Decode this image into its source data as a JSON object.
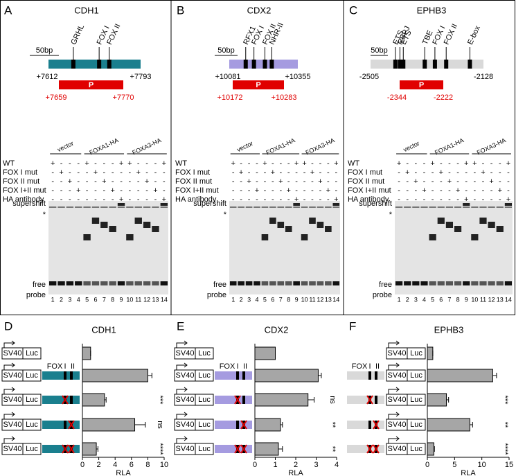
{
  "panels": [
    {
      "letter": "A",
      "gene": "CDH1",
      "scale_bar": "50bp",
      "sites": [
        "GRHL",
        "FOX I",
        "FOX II"
      ],
      "start": "+7612",
      "end": "+7793",
      "probe": "P",
      "probe_start": "+7659",
      "probe_end": "+7770",
      "color": "#1a7f8e",
      "groups": [
        "vector",
        "FOXA1-HA",
        "FOXA3-HA"
      ],
      "rows": [
        "WT",
        "FOX I mut",
        "FOX II mut",
        "FOX I+II mut",
        "HA antibody"
      ],
      "matrix": [
        [
          "+",
          "-",
          "-",
          "-",
          "+",
          "-",
          "-",
          "-",
          "+",
          "+",
          "-",
          "-",
          "-",
          "+"
        ],
        [
          "-",
          "+",
          "-",
          "-",
          "-",
          "+",
          "-",
          "-",
          "-",
          "-",
          "+",
          "-",
          "-",
          "-"
        ],
        [
          "-",
          "-",
          "+",
          "-",
          "-",
          "-",
          "+",
          "-",
          "-",
          "-",
          "-",
          "+",
          "-",
          "-"
        ],
        [
          "-",
          "-",
          "-",
          "+",
          "-",
          "-",
          "-",
          "+",
          "-",
          "-",
          "-",
          "-",
          "+",
          "-"
        ],
        [
          "-",
          "-",
          "-",
          "-",
          "-",
          "-",
          "-",
          "-",
          "+",
          "-",
          "-",
          "-",
          "-",
          "+"
        ]
      ],
      "band_labels": [
        "supershift",
        "*",
        "free",
        "probe"
      ],
      "lanes": [
        1,
        2,
        3,
        4,
        5,
        6,
        7,
        8,
        9,
        10,
        11,
        12,
        13,
        14
      ]
    },
    {
      "letter": "B",
      "gene": "CDX2",
      "scale_bar": "50bp",
      "sites": [
        "RFX1",
        "FOX I",
        "FOX II",
        "NHR-II"
      ],
      "start": "+10081",
      "end": "+10355",
      "probe": "P",
      "probe_start": "+10172",
      "probe_end": "+10283",
      "color": "#a59be0",
      "groups": [
        "vector",
        "FOXA1-HA",
        "FOXA3-HA"
      ],
      "rows": [
        "WT",
        "FOX I mut",
        "FOX II mut",
        "FOX I+II mut",
        "HA antibody"
      ],
      "matrix": [
        [
          "+",
          "-",
          "-",
          "-",
          "+",
          "-",
          "-",
          "-",
          "+",
          "+",
          "-",
          "-",
          "-",
          "+"
        ],
        [
          "-",
          "+",
          "-",
          "-",
          "-",
          "+",
          "-",
          "-",
          "-",
          "-",
          "+",
          "-",
          "-",
          "-"
        ],
        [
          "-",
          "-",
          "+",
          "-",
          "-",
          "-",
          "+",
          "-",
          "-",
          "-",
          "-",
          "+",
          "-",
          "-"
        ],
        [
          "-",
          "-",
          "-",
          "+",
          "-",
          "-",
          "-",
          "+",
          "-",
          "-",
          "-",
          "-",
          "+",
          "-"
        ],
        [
          "-",
          "-",
          "-",
          "-",
          "-",
          "-",
          "-",
          "-",
          "+",
          "-",
          "-",
          "-",
          "-",
          "+"
        ]
      ],
      "band_labels": [
        "supershift",
        "*",
        "free",
        "probe"
      ],
      "lanes": [
        1,
        2,
        3,
        4,
        5,
        6,
        7,
        8,
        9,
        10,
        11,
        12,
        13,
        14
      ]
    },
    {
      "letter": "C",
      "gene": "EPHB3",
      "scale_bar": "50bp",
      "sites": [
        "ETS",
        "RBPJ",
        "ETS",
        "TBE",
        "FOX I",
        "FOX II",
        "E-box"
      ],
      "start": "-2505",
      "end": "-2128",
      "probe": "P",
      "probe_start": "-2344",
      "probe_end": "-2222",
      "color": "#d9d9d9",
      "groups": [
        "vector",
        "FOXA1-HA",
        "FOXA3-HA"
      ],
      "rows": [
        "WT",
        "FOX I mut",
        "FOX II mut",
        "FOX I+II mut",
        "HA antibody"
      ],
      "matrix": [
        [
          "+",
          "-",
          "-",
          "-",
          "+",
          "-",
          "-",
          "-",
          "+",
          "+",
          "-",
          "-",
          "-",
          "+"
        ],
        [
          "-",
          "+",
          "-",
          "-",
          "-",
          "+",
          "-",
          "-",
          "-",
          "-",
          "+",
          "-",
          "-",
          "-"
        ],
        [
          "-",
          "-",
          "+",
          "-",
          "-",
          "-",
          "+",
          "-",
          "-",
          "-",
          "-",
          "+",
          "-",
          "-"
        ],
        [
          "-",
          "-",
          "-",
          "+",
          "-",
          "-",
          "-",
          "+",
          "-",
          "-",
          "-",
          "-",
          "+",
          "-"
        ],
        [
          "-",
          "-",
          "-",
          "-",
          "-",
          "-",
          "-",
          "-",
          "+",
          "-",
          "-",
          "-",
          "-",
          "+"
        ]
      ],
      "band_labels": [
        "supershift",
        "*",
        "free",
        "probe"
      ],
      "lanes": [
        1,
        2,
        3,
        4,
        5,
        6,
        7,
        8,
        9,
        10,
        11,
        12,
        13,
        14
      ]
    }
  ],
  "chart_data": [
    {
      "type": "bar",
      "letter": "D",
      "title": "CDH1",
      "xlabel": "RLA",
      "promoter_label": "SV40",
      "reporter_label": "Luc",
      "site_labels": [
        "FOX",
        "I",
        "II"
      ],
      "element_color": "#1a7f8e",
      "color": "#a6a6a6",
      "values": [
        1,
        8,
        2.7,
        6.4,
        1.7
      ],
      "errors": [
        0,
        0.5,
        0.2,
        1.3,
        0.2
      ],
      "significance": [
        null,
        null,
        "***",
        "ns",
        "****"
      ],
      "xlim": [
        0,
        10
      ],
      "xticks": [
        0,
        2,
        4,
        6,
        8,
        10
      ]
    },
    {
      "type": "bar",
      "letter": "E",
      "title": "CDX2",
      "xlabel": "RLA",
      "promoter_label": "SV40",
      "reporter_label": "Luc",
      "site_labels": [
        "FOX",
        "I",
        "II"
      ],
      "element_color": "#a59be0",
      "color": "#a6a6a6",
      "values": [
        1,
        3.1,
        2.6,
        1.25,
        1.15
      ],
      "errors": [
        0,
        0.15,
        0.3,
        0.1,
        0.2
      ],
      "significance": [
        null,
        null,
        "ns",
        "**",
        "**"
      ],
      "xlim": [
        0,
        4
      ],
      "xticks": [
        0,
        1,
        2,
        3,
        4
      ]
    },
    {
      "type": "bar",
      "letter": "F",
      "title": "EPHB3",
      "xlabel": "RLA",
      "promoter_label": "SV40",
      "reporter_label": "Luc",
      "site_labels": [
        "FOX",
        "I",
        "II"
      ],
      "element_color": "#d9d9d9",
      "color": "#a6a6a6",
      "values": [
        1,
        12,
        3.5,
        7.8,
        1.2
      ],
      "errors": [
        0,
        0.7,
        0.4,
        0.5,
        0.1
      ],
      "significance": [
        null,
        null,
        "***",
        "**",
        "****"
      ],
      "xlim": [
        0,
        15
      ],
      "xticks": [
        0,
        5,
        10,
        15
      ]
    }
  ]
}
